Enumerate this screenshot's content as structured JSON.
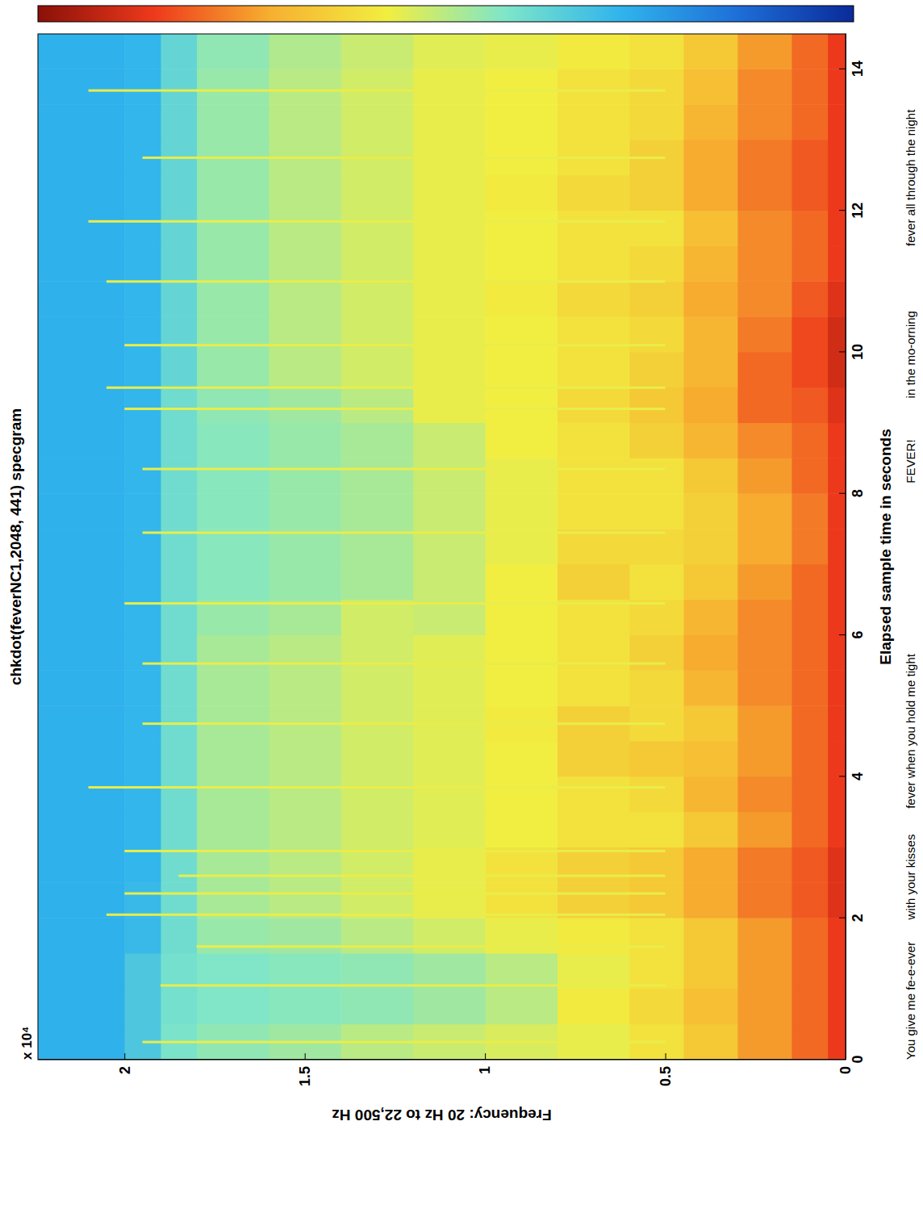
{
  "chart_data": {
    "type": "heatmap",
    "title": "chkdot(feverNC1,2048, 441) specgram",
    "x_label": "Elapsed sample time in seconds",
    "y_label": "Frequency: 20 Hz to 22,500 Hz",
    "y_multiplier": "x 10⁴",
    "xlim": [
      0,
      14.5
    ],
    "xticks": [
      0,
      2,
      4,
      6,
      8,
      10,
      12,
      14
    ],
    "ylim": [
      0,
      2.24
    ],
    "yticks": [
      0,
      0.5,
      1,
      1.5,
      2
    ],
    "time_edges": [
      0,
      0.5,
      1,
      1.5,
      2,
      2.5,
      3,
      3.5,
      4,
      4.5,
      5,
      5.5,
      6,
      6.5,
      7,
      7.5,
      8,
      8.5,
      9,
      9.5,
      10,
      10.5,
      11,
      11.5,
      12,
      12.5,
      13,
      13.5,
      14,
      14.5
    ],
    "freq_edges": [
      0,
      0.05,
      0.15,
      0.3,
      0.45,
      0.6,
      0.8,
      1,
      1.2,
      1.4,
      1.6,
      1.8,
      1.9,
      2,
      2.24
    ],
    "color_range": [
      0,
      1
    ],
    "levels": [
      [
        0.86,
        0.86,
        0.86,
        0.86,
        0.88,
        0.88,
        0.86,
        0.86,
        0.86,
        0.86,
        0.86,
        0.86,
        0.86,
        0.86,
        0.86,
        0.86,
        0.86,
        0.86,
        0.88,
        0.9,
        0.9,
        0.88,
        0.86,
        0.86,
        0.86,
        0.86,
        0.86,
        0.86,
        0.86
      ],
      [
        0.8,
        0.8,
        0.8,
        0.8,
        0.82,
        0.82,
        0.8,
        0.8,
        0.8,
        0.8,
        0.8,
        0.8,
        0.8,
        0.8,
        0.78,
        0.78,
        0.8,
        0.8,
        0.82,
        0.84,
        0.84,
        0.82,
        0.8,
        0.8,
        0.82,
        0.82,
        0.8,
        0.8,
        0.8
      ],
      [
        0.74,
        0.74,
        0.74,
        0.74,
        0.78,
        0.78,
        0.74,
        0.76,
        0.74,
        0.74,
        0.76,
        0.76,
        0.76,
        0.74,
        0.72,
        0.72,
        0.74,
        0.76,
        0.8,
        0.8,
        0.78,
        0.76,
        0.76,
        0.76,
        0.78,
        0.78,
        0.76,
        0.76,
        0.74
      ],
      [
        0.66,
        0.68,
        0.66,
        0.66,
        0.72,
        0.72,
        0.66,
        0.7,
        0.68,
        0.66,
        0.7,
        0.72,
        0.7,
        0.66,
        0.64,
        0.64,
        0.66,
        0.7,
        0.72,
        0.7,
        0.7,
        0.72,
        0.7,
        0.68,
        0.72,
        0.72,
        0.7,
        0.68,
        0.66
      ],
      [
        0.6,
        0.62,
        0.6,
        0.6,
        0.66,
        0.66,
        0.6,
        0.62,
        0.66,
        0.62,
        0.62,
        0.64,
        0.62,
        0.6,
        0.62,
        0.6,
        0.6,
        0.64,
        0.66,
        0.64,
        0.62,
        0.64,
        0.62,
        0.6,
        0.64,
        0.64,
        0.62,
        0.62,
        0.6
      ],
      [
        0.56,
        0.58,
        0.56,
        0.58,
        0.64,
        0.64,
        0.6,
        0.6,
        0.64,
        0.64,
        0.6,
        0.6,
        0.6,
        0.64,
        0.62,
        0.6,
        0.6,
        0.6,
        0.62,
        0.6,
        0.6,
        0.62,
        0.6,
        0.6,
        0.62,
        0.6,
        0.6,
        0.6,
        0.58
      ],
      [
        0.54,
        0.5,
        0.5,
        0.56,
        0.6,
        0.6,
        0.57,
        0.57,
        0.57,
        0.58,
        0.57,
        0.57,
        0.57,
        0.57,
        0.56,
        0.56,
        0.56,
        0.57,
        0.57,
        0.57,
        0.57,
        0.58,
        0.57,
        0.57,
        0.58,
        0.57,
        0.57,
        0.57,
        0.56
      ],
      [
        0.52,
        0.47,
        0.47,
        0.53,
        0.56,
        0.56,
        0.55,
        0.55,
        0.55,
        0.55,
        0.55,
        0.55,
        0.52,
        0.52,
        0.52,
        0.52,
        0.52,
        0.52,
        0.56,
        0.56,
        0.56,
        0.56,
        0.56,
        0.56,
        0.56,
        0.56,
        0.56,
        0.56,
        0.55
      ],
      [
        0.5,
        0.45,
        0.45,
        0.5,
        0.53,
        0.53,
        0.53,
        0.53,
        0.53,
        0.53,
        0.53,
        0.53,
        0.53,
        0.48,
        0.48,
        0.48,
        0.48,
        0.48,
        0.5,
        0.53,
        0.53,
        0.53,
        0.53,
        0.53,
        0.53,
        0.53,
        0.53,
        0.53,
        0.52
      ],
      [
        0.47,
        0.44,
        0.44,
        0.47,
        0.5,
        0.5,
        0.5,
        0.5,
        0.5,
        0.5,
        0.5,
        0.5,
        0.48,
        0.46,
        0.46,
        0.46,
        0.46,
        0.46,
        0.47,
        0.5,
        0.5,
        0.5,
        0.5,
        0.5,
        0.5,
        0.5,
        0.5,
        0.5,
        0.49
      ],
      [
        0.45,
        0.43,
        0.43,
        0.46,
        0.48,
        0.48,
        0.48,
        0.48,
        0.48,
        0.48,
        0.48,
        0.48,
        0.46,
        0.44,
        0.44,
        0.44,
        0.44,
        0.44,
        0.45,
        0.46,
        0.46,
        0.46,
        0.46,
        0.46,
        0.46,
        0.46,
        0.46,
        0.46,
        0.45
      ],
      [
        0.42,
        0.41,
        0.41,
        0.4,
        0.4,
        0.4,
        0.4,
        0.4,
        0.4,
        0.4,
        0.4,
        0.4,
        0.4,
        0.4,
        0.4,
        0.4,
        0.4,
        0.4,
        0.4,
        0.38,
        0.38,
        0.38,
        0.38,
        0.38,
        0.38,
        0.38,
        0.38,
        0.38,
        0.38
      ],
      [
        0.34,
        0.34,
        0.34,
        0.3,
        0.3,
        0.29,
        0.29,
        0.29,
        0.29,
        0.29,
        0.29,
        0.29,
        0.29,
        0.29,
        0.29,
        0.29,
        0.29,
        0.29,
        0.29,
        0.29,
        0.29,
        0.29,
        0.29,
        0.29,
        0.29,
        0.29,
        0.29,
        0.29,
        0.29
      ],
      [
        0.28,
        0.28,
        0.28,
        0.28,
        0.28,
        0.28,
        0.28,
        0.28,
        0.28,
        0.28,
        0.28,
        0.28,
        0.28,
        0.28,
        0.28,
        0.28,
        0.28,
        0.28,
        0.28,
        0.28,
        0.28,
        0.28,
        0.28,
        0.28,
        0.28,
        0.28,
        0.28,
        0.28,
        0.28
      ]
    ],
    "clicks": {
      "times": [
        0.25,
        1.05,
        1.6,
        2.05,
        2.35,
        2.6,
        2.95,
        3.85,
        4.75,
        5.6,
        6.45,
        7.45,
        8.35,
        9.2,
        9.5,
        10.1,
        11,
        11.85,
        12.75,
        13.7
      ],
      "low": [
        0.5,
        0.5,
        0.5,
        0.5,
        0.5,
        0.5,
        0.5,
        0.5,
        0.5,
        0.5,
        0.5,
        0.5,
        0.5,
        0.5,
        0.5,
        0.5,
        0.5,
        0.5,
        0.5,
        0.5
      ],
      "high": [
        1.95,
        1.9,
        1.8,
        2.05,
        2,
        1.85,
        2,
        2.1,
        1.95,
        1.95,
        2,
        1.95,
        1.95,
        2,
        2.05,
        2,
        2.05,
        2.1,
        1.95,
        2.1
      ],
      "level": [
        0.56,
        0.56,
        0.56,
        0.56,
        0.56,
        0.56,
        0.56,
        0.56,
        0.56,
        0.56,
        0.56,
        0.56,
        0.56,
        0.56,
        0.56,
        0.56,
        0.56,
        0.56,
        0.56,
        0.56
      ]
    },
    "annotations": [
      {
        "text": "You give me fe-e-ever",
        "x": 0
      },
      {
        "text": "with your kisses",
        "x": 1.98
      },
      {
        "text": "fever when you hold me tight",
        "x": 3.55
      },
      {
        "text": "FEVER!",
        "x": 8.15
      },
      {
        "text": "in the mo-orning",
        "x": 9.35
      },
      {
        "text": "fever all through the night",
        "x": 11.5
      }
    ]
  }
}
